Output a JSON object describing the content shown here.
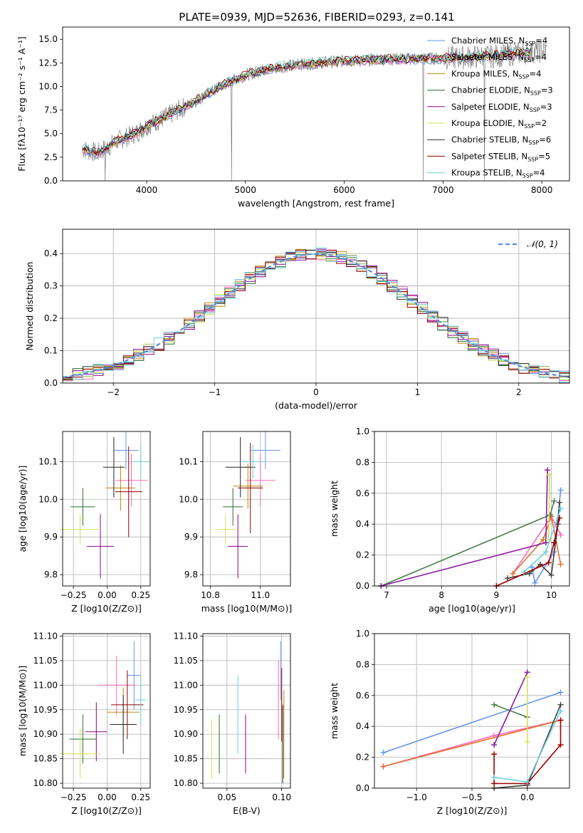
{
  "figure": {
    "title": "PLATE=0939, MJD=52636, FIBERID=0293, z=0.141"
  },
  "colors": {
    "series": [
      "#6495ed",
      "#ff69b4",
      "#b8860b",
      "#2e6b2e",
      "#8b008b",
      "#d4e157",
      "#262626",
      "#8b0000",
      "#6fd0d8"
    ],
    "spectrum_data": "#7f7f7f",
    "mass_weight": [
      "#6495ed",
      "#ff69b4",
      "#e07030",
      "#4a7c4a",
      "#8b1aa0",
      "#d4e157",
      "#404040",
      "#a00000",
      "#6fd0d8"
    ],
    "gaussian": "#5a8fd8"
  },
  "chart_data": [
    {
      "id": "spectrum",
      "type": "line",
      "xlabel": "wavelength [Angstrom, rest frame]",
      "ylabel": "Flux [fλ10⁻¹⁷ erg cm⁻² s⁻¹ A⁻¹]",
      "xlim": [
        3150,
        8280
      ],
      "ylim": [
        0,
        16.3
      ],
      "xticks": [
        4000,
        5000,
        6000,
        7000,
        8000
      ],
      "yticks": [
        0.0,
        2.5,
        5.0,
        7.5,
        10.0,
        12.5,
        15.0
      ],
      "legend": [
        "Chabrier MILES, N_SSP=4",
        "Salpeter MILES, N_SSP=4",
        "Kroupa MILES, N_SSP=4",
        "Chabrier ELODIE, N_SSP=3",
        "Salpeter ELODIE, N_SSP=3",
        "Kroupa ELODIE, N_SSP=2",
        "Chabrier STELIB, N_SSP=6",
        "Salpeter STELIB, N_SSP=5",
        "Kroupa STELIB, N_SSP=4"
      ],
      "legend_placement": "upper-right",
      "continuum": [
        [
          3350,
          3.4
        ],
        [
          3500,
          2.9
        ],
        [
          3700,
          4.2
        ],
        [
          3900,
          5.1
        ],
        [
          4000,
          5.8
        ],
        [
          4200,
          6.8
        ],
        [
          4500,
          8.5
        ],
        [
          4800,
          10.3
        ],
        [
          5000,
          11.2
        ],
        [
          5200,
          11.8
        ],
        [
          5500,
          12.3
        ],
        [
          6000,
          12.7
        ],
        [
          6500,
          12.9
        ],
        [
          7000,
          13.0
        ],
        [
          7500,
          13.2
        ],
        [
          8000,
          13.8
        ]
      ]
    },
    {
      "id": "residuals",
      "type": "line",
      "xlabel": "(data-model)/error",
      "ylabel": "Normed distribution",
      "xlim": [
        -2.5,
        2.5
      ],
      "ylim": [
        0,
        0.475
      ],
      "xticks": [
        -2,
        -1,
        0,
        1,
        2
      ],
      "yticks": [
        0.0,
        0.1,
        0.2,
        0.3,
        0.4
      ],
      "legend": [
        "N(0,1)"
      ],
      "legend_placement": "upper-right",
      "grid": true
    },
    {
      "id": "age_vs_Z",
      "type": "scatter",
      "xlabel": "Z [log10(Z/Z⊙)]",
      "ylabel": "age  [log10(age/yr)]",
      "xlim": [
        -0.33,
        0.32
      ],
      "ylim": [
        9.77,
        10.18
      ],
      "xticks": [
        -0.25,
        0.0,
        0.25
      ],
      "yticks": [
        9.8,
        9.9,
        10.0,
        10.1
      ],
      "grid": true,
      "points": [
        {
          "x": 0.14,
          "y": 10.13,
          "xerr": 0.09,
          "yerr": 0.05
        },
        {
          "x": 0.18,
          "y": 10.05,
          "xerr": 0.12,
          "yerr": 0.07
        },
        {
          "x": 0.1,
          "y": 10.03,
          "xerr": 0.11,
          "yerr": 0.06
        },
        {
          "x": -0.18,
          "y": 9.98,
          "xerr": 0.09,
          "yerr": 0.05
        },
        {
          "x": -0.05,
          "y": 9.875,
          "xerr": 0.1,
          "yerr": 0.085
        },
        {
          "x": -0.2,
          "y": 9.92,
          "xerr": 0.15,
          "yerr": 0.04
        },
        {
          "x": 0.05,
          "y": 10.085,
          "xerr": 0.08,
          "yerr": 0.08
        },
        {
          "x": 0.16,
          "y": 10.02,
          "xerr": 0.1,
          "yerr": 0.12
        },
        {
          "x": 0.25,
          "y": 10.1,
          "xerr": 0.06,
          "yerr": 0.045
        }
      ]
    },
    {
      "id": "age_vs_mass",
      "type": "scatter",
      "xlabel": "mass [log10(M/M⊙)]",
      "ylabel": "",
      "xlim": [
        10.77,
        11.12
      ],
      "ylim": [
        9.77,
        10.18
      ],
      "xticks": [
        10.8,
        11.0
      ],
      "yticks": [
        9.8,
        9.9,
        10.0,
        10.1
      ],
      "grid": true,
      "points": [
        {
          "x": 11.02,
          "y": 10.13,
          "xerr": 0.06,
          "yerr": 0.05
        },
        {
          "x": 11.0,
          "y": 10.05,
          "xerr": 0.06,
          "yerr": 0.07
        },
        {
          "x": 10.95,
          "y": 10.035,
          "xerr": 0.06,
          "yerr": 0.06
        },
        {
          "x": 10.89,
          "y": 9.98,
          "xerr": 0.04,
          "yerr": 0.05
        },
        {
          "x": 10.91,
          "y": 9.875,
          "xerr": 0.04,
          "yerr": 0.085
        },
        {
          "x": 10.86,
          "y": 9.92,
          "xerr": 0.04,
          "yerr": 0.04
        },
        {
          "x": 10.92,
          "y": 10.085,
          "xerr": 0.06,
          "yerr": 0.08
        },
        {
          "x": 10.96,
          "y": 10.03,
          "xerr": 0.05,
          "yerr": 0.12
        },
        {
          "x": 10.97,
          "y": 10.1,
          "xerr": 0.05,
          "yerr": 0.045
        }
      ]
    },
    {
      "id": "weight_vs_age",
      "type": "line",
      "xlabel": "age  [log10(age/yr)]",
      "ylabel": "mass weight",
      "xlim": [
        6.78,
        10.33
      ],
      "ylim": [
        0,
        1.0
      ],
      "xticks": [
        7,
        8,
        9,
        10
      ],
      "yticks": [
        0.0,
        0.2,
        0.4,
        0.6,
        0.8,
        1.0
      ],
      "grid": true,
      "series": [
        {
          "points": [
            [
              9.65,
              0.12
            ],
            [
              9.7,
              0.02
            ],
            [
              10.05,
              0.22
            ],
            [
              10.17,
              0.62
            ]
          ]
        },
        {
          "points": [
            [
              9.3,
              0.08
            ],
            [
              10.0,
              0.45
            ],
            [
              10.17,
              0.33
            ]
          ]
        },
        {
          "points": [
            [
              9.3,
              0.08
            ],
            [
              9.85,
              0.3
            ],
            [
              10.0,
              0.45
            ],
            [
              10.17,
              0.14
            ]
          ]
        },
        {
          "points": [
            [
              6.9,
              0.0
            ],
            [
              9.98,
              0.46
            ],
            [
              10.05,
              0.55
            ]
          ]
        },
        {
          "points": [
            [
              6.9,
              0.0
            ],
            [
              9.9,
              0.28
            ],
            [
              9.93,
              0.75
            ]
          ]
        },
        {
          "points": [
            [
              9.95,
              0.3
            ],
            [
              9.97,
              0.72
            ]
          ]
        },
        {
          "points": [
            [
              9.2,
              0.05
            ],
            [
              9.6,
              0.08
            ],
            [
              9.8,
              0.14
            ],
            [
              10.0,
              0.07
            ],
            [
              10.12,
              0.4
            ],
            [
              10.15,
              0.54
            ]
          ]
        },
        {
          "points": [
            [
              9.0,
              0.0
            ],
            [
              9.95,
              0.15
            ],
            [
              10.05,
              0.28
            ],
            [
              10.15,
              0.44
            ]
          ]
        },
        {
          "points": [
            [
              9.5,
              0.09
            ],
            [
              9.9,
              0.22
            ],
            [
              10.17,
              0.5
            ]
          ]
        }
      ]
    },
    {
      "id": "mass_vs_Z",
      "type": "scatter",
      "xlabel": "Z [log10(Z/Z⊙)]",
      "ylabel": "mass [log10(M/M⊙)]",
      "xlim": [
        -0.33,
        0.32
      ],
      "ylim": [
        10.79,
        11.105
      ],
      "xticks": [
        -0.25,
        0.0,
        0.25
      ],
      "yticks": [
        10.8,
        10.85,
        10.9,
        10.95,
        11.0,
        11.05,
        11.1
      ],
      "grid": true,
      "points": [
        {
          "x": 0.2,
          "y": 11.02,
          "xerr": 0.05,
          "yerr": 0.07
        },
        {
          "x": 0.07,
          "y": 11.0,
          "xerr": 0.14,
          "yerr": 0.06
        },
        {
          "x": 0.12,
          "y": 10.945,
          "xerr": 0.12,
          "yerr": 0.05
        },
        {
          "x": -0.18,
          "y": 10.89,
          "xerr": 0.1,
          "yerr": 0.05
        },
        {
          "x": -0.08,
          "y": 10.905,
          "xerr": 0.08,
          "yerr": 0.06
        },
        {
          "x": -0.2,
          "y": 10.86,
          "xerr": 0.15,
          "yerr": 0.05
        },
        {
          "x": 0.12,
          "y": 10.92,
          "xerr": 0.1,
          "yerr": 0.06
        },
        {
          "x": 0.15,
          "y": 10.96,
          "xerr": 0.12,
          "yerr": 0.07
        },
        {
          "x": 0.25,
          "y": 10.97,
          "xerr": 0.04,
          "yerr": 0.05
        }
      ]
    },
    {
      "id": "mass_vs_ebv",
      "type": "scatter",
      "xlabel": "E(B-V)",
      "ylabel": "",
      "xlim": [
        0.028,
        0.108
      ],
      "ylim": [
        10.79,
        11.105
      ],
      "xticks": [
        0.05,
        0.1
      ],
      "yticks": [
        10.8,
        10.85,
        10.9,
        10.95,
        11.0,
        11.05,
        11.1
      ],
      "grid": true,
      "points": [
        {
          "x": 0.099,
          "y": 11.03,
          "xerr": 0,
          "yerr": 0.06
        },
        {
          "x": 0.097,
          "y": 10.97,
          "xerr": 0,
          "yerr": 0.08
        },
        {
          "x": 0.102,
          "y": 10.9,
          "xerr": 0,
          "yerr": 0.09
        },
        {
          "x": 0.043,
          "y": 10.88,
          "xerr": 0,
          "yerr": 0.06
        },
        {
          "x": 0.067,
          "y": 10.88,
          "xerr": 0,
          "yerr": 0.06
        },
        {
          "x": 0.036,
          "y": 10.87,
          "xerr": 0,
          "yerr": 0.06
        },
        {
          "x": 0.101,
          "y": 10.88,
          "xerr": 0,
          "yerr": 0.08
        },
        {
          "x": 0.1,
          "y": 10.96,
          "xerr": 0,
          "yerr": 0.075
        },
        {
          "x": 0.06,
          "y": 10.94,
          "xerr": 0,
          "yerr": 0.08
        }
      ]
    },
    {
      "id": "weight_vs_Z",
      "type": "line",
      "xlabel": "Z [log10(Z/Z⊙)]",
      "ylabel": "mass weight",
      "xlim": [
        -1.38,
        0.38
      ],
      "ylim": [
        0,
        1.0
      ],
      "xticks": [
        -1.0,
        -0.5,
        0.0
      ],
      "yticks": [
        0.0,
        0.2,
        0.4,
        0.6,
        0.8,
        1.0
      ],
      "grid": true,
      "series": [
        {
          "points": [
            [
              -1.3,
              0.23
            ],
            [
              0.3,
              0.62
            ]
          ]
        },
        {
          "points": [
            [
              -1.3,
              0.14
            ],
            [
              -0.3,
              0.34
            ],
            [
              0.3,
              0.44
            ]
          ]
        },
        {
          "points": [
            [
              -1.3,
              0.14
            ],
            [
              0.3,
              0.44
            ]
          ]
        },
        {
          "points": [
            [
              -0.3,
              0.54
            ],
            [
              0.0,
              0.46
            ]
          ]
        },
        {
          "points": [
            [
              -0.3,
              0.28
            ],
            [
              0.0,
              0.75
            ]
          ]
        },
        {
          "points": [
            [
              0.0,
              0.3
            ],
            [
              0.0,
              0.72
            ]
          ]
        },
        {
          "points": [
            [
              -0.3,
              0.0
            ],
            [
              0.0,
              0.02
            ],
            [
              0.3,
              0.54
            ]
          ]
        },
        {
          "points": [
            [
              -0.3,
              0.22
            ],
            [
              -0.3,
              0.03
            ],
            [
              0.0,
              0.03
            ],
            [
              0.3,
              0.28
            ],
            [
              0.3,
              0.44
            ]
          ]
        },
        {
          "points": [
            [
              -0.3,
              0.07
            ],
            [
              0.0,
              0.04
            ],
            [
              0.3,
              0.5
            ]
          ]
        }
      ]
    }
  ]
}
